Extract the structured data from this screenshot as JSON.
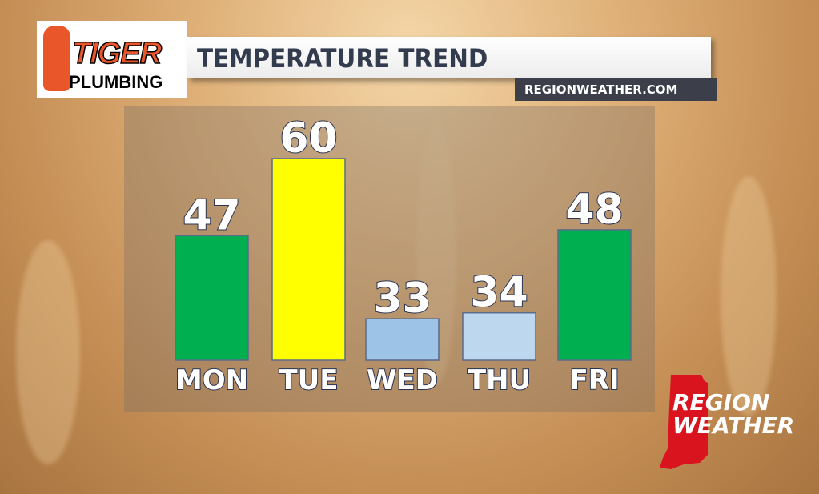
{
  "sponsor": {
    "line1": "TIGER",
    "line2": "PLUMBING"
  },
  "header": {
    "title": "TEMPERATURE TREND",
    "website": "REGIONWEATHER.COM"
  },
  "brand": {
    "line1": "REGION",
    "line2": "WEATHER",
    "color": "#d9141f"
  },
  "chart_data": {
    "type": "bar",
    "categories": [
      "MON",
      "TUE",
      "WED",
      "THU",
      "FRI"
    ],
    "values": [
      47,
      60,
      33,
      34,
      48
    ],
    "colors": [
      "#00b050",
      "#ffff00",
      "#9dc3e6",
      "#bdd7ee",
      "#00b050"
    ],
    "ylim": [
      26,
      60
    ],
    "grid": false
  }
}
